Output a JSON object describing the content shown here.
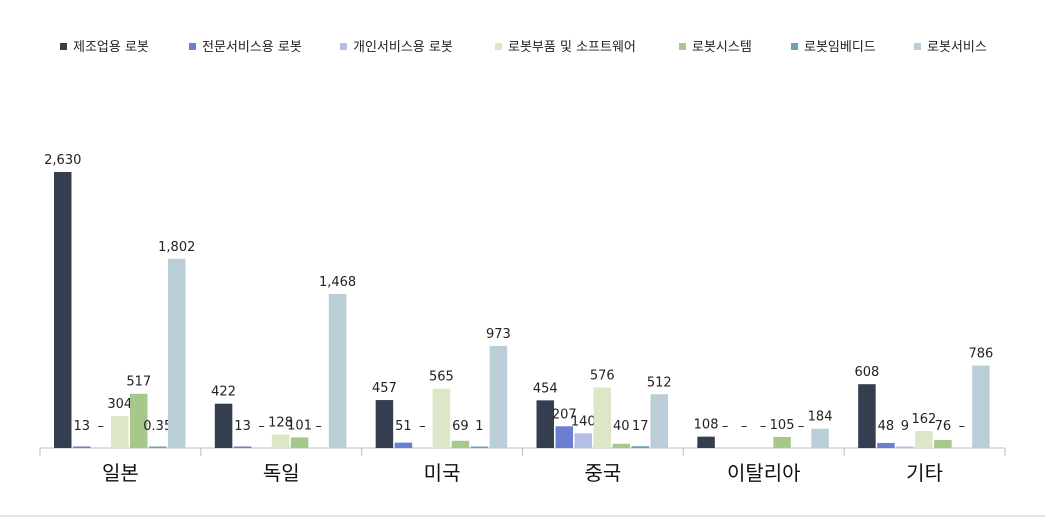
{
  "chart_data": {
    "type": "bar",
    "categories": [
      "일본",
      "독일",
      "미국",
      "중국",
      "이탈리아",
      "기타"
    ],
    "series": [
      {
        "name": "제조업용 로봇",
        "color": "#333f4f",
        "values": [
          2630,
          422,
          457,
          454,
          108,
          608
        ],
        "labels": [
          "2,630",
          "422",
          "457",
          "454",
          "108",
          "608"
        ]
      },
      {
        "name": "전문서비스용 로봇",
        "color": "#6a7fcf",
        "values": [
          13,
          13,
          51,
          207,
          0,
          48
        ],
        "labels": [
          "13",
          "13",
          "51",
          "207",
          "–",
          "48"
        ]
      },
      {
        "name": "개인서비스용 로봇",
        "color": "#b4bfe6",
        "values": [
          0,
          0,
          0,
          140,
          0,
          9
        ],
        "labels": [
          "–",
          "–",
          "–",
          "140",
          "–",
          "9"
        ]
      },
      {
        "name": "로봇부품 및 소프트웨어",
        "color": "#dde6c6",
        "values": [
          304,
          128,
          565,
          576,
          0,
          162
        ],
        "labels": [
          "304",
          "128",
          "565",
          "576",
          "–",
          "162"
        ]
      },
      {
        "name": "로봇시스템",
        "color": "#a6c98b",
        "values": [
          517,
          101,
          69,
          40,
          105,
          76
        ],
        "labels": [
          "517",
          "101",
          "69",
          "40",
          "105",
          "76"
        ]
      },
      {
        "name": "로봇임베디드",
        "color": "#6aa3b5",
        "values": [
          0.35,
          0,
          1,
          17,
          0,
          0
        ],
        "labels": [
          "0.35",
          "–",
          "1",
          "17",
          "–",
          "–"
        ]
      },
      {
        "name": "로봇서비스",
        "color": "#b9ced6",
        "values": [
          1802,
          1468,
          973,
          512,
          184,
          786
        ],
        "labels": [
          "1,802",
          "1,468",
          "973",
          "512",
          "184",
          "786"
        ]
      }
    ],
    "ylim": [
      0,
      2630
    ],
    "legend_position": "top",
    "grid": false
  }
}
